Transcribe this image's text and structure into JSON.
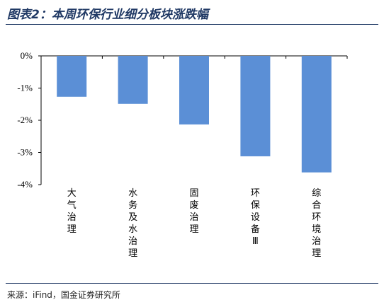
{
  "title": "图表2：本周环保行业细分板块涨跌幅",
  "source": "来源：iFind，国金证券研究所",
  "colors": {
    "bar": "#5b8fd6",
    "rule": "#1f3864",
    "axis": "#000000"
  },
  "chart_data": {
    "type": "bar",
    "categories": [
      "大气治理",
      "水务及水治理",
      "固废治理",
      "环保设备Ⅲ",
      "综合环境治理"
    ],
    "values": [
      -1.27,
      -1.49,
      -2.13,
      -3.12,
      -3.62
    ],
    "tick_labels": [
      "0%",
      "-1%",
      "-2%",
      "-3%",
      "-4%"
    ],
    "ylim": [
      -4,
      0
    ],
    "xlabel": "",
    "ylabel": "",
    "grid": false,
    "legend": "none"
  }
}
